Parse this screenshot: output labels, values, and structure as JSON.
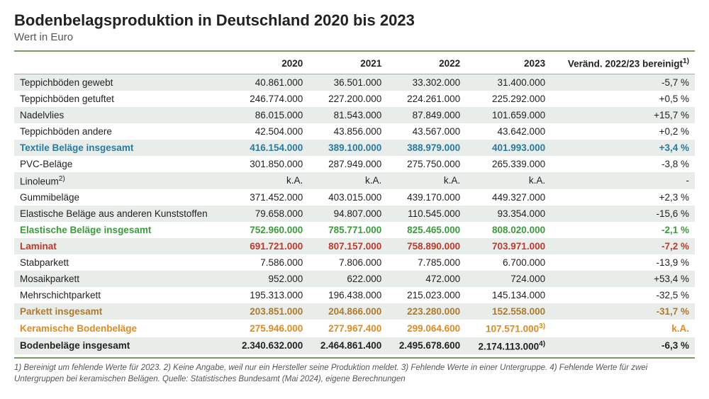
{
  "title": "Bodenbelagsproduktion in Deutschland 2020 bis 2023",
  "subtitle": "Wert in Euro",
  "columns": [
    "",
    "2020",
    "2021",
    "2022",
    "2023",
    "Veränd. 2022/23 bereinigt"
  ],
  "header_sup": "1)",
  "colors": {
    "blue": "#2a7a9e",
    "green": "#3d9a3d",
    "red": "#c0392b",
    "brown": "#b07a2a",
    "orange": "#e08b1e",
    "black": "#222222"
  },
  "rows": [
    {
      "label": "Teppichböden gewebt",
      "v": [
        "40.861.000",
        "36.501.000",
        "33.302.000",
        "31.400.000",
        "-5,7 %"
      ],
      "color": "black",
      "bold": false,
      "stripe": "odd"
    },
    {
      "label": "Teppichböden getuftet",
      "v": [
        "246.774.000",
        "227.200.000",
        "224.261.000",
        "225.292.000",
        "+0,5 %"
      ],
      "color": "black",
      "bold": false,
      "stripe": "even"
    },
    {
      "label": "Nadelvlies",
      "v": [
        "86.015.000",
        "81.543.000",
        "87.849.000",
        "101.659.000",
        "+15,7 %"
      ],
      "color": "black",
      "bold": false,
      "stripe": "odd"
    },
    {
      "label": "Teppichböden andere",
      "v": [
        "42.504.000",
        "43.856.000",
        "43.567.000",
        "43.642.000",
        "+0,2 %"
      ],
      "color": "black",
      "bold": false,
      "stripe": "even"
    },
    {
      "label": "Textile Beläge insgesamt",
      "v": [
        "416.154.000",
        "389.100.000",
        "388.979.000",
        "401.993.000",
        "+3,4 %"
      ],
      "color": "blue",
      "bold": true,
      "stripe": "odd"
    },
    {
      "label": "PVC-Beläge",
      "v": [
        "301.850.000",
        "287.949.000",
        "275.750.000",
        "265.339.000",
        "-3,8 %"
      ],
      "color": "black",
      "bold": false,
      "stripe": "even"
    },
    {
      "label": "Linoleum",
      "sup": "2)",
      "v": [
        "k.A.",
        "k.A.",
        "k.A.",
        "k.A.",
        "-"
      ],
      "color": "black",
      "bold": false,
      "stripe": "odd"
    },
    {
      "label": "Gummibeläge",
      "v": [
        "371.452.000",
        "403.015.000",
        "439.170.000",
        "449.327.000",
        "+2,3 %"
      ],
      "color": "black",
      "bold": false,
      "stripe": "even"
    },
    {
      "label": "Elastische Beläge aus anderen Kunststoffen",
      "v": [
        "79.658.000",
        "94.807.000",
        "110.545.000",
        "93.354.000",
        "-15,6 %"
      ],
      "color": "black",
      "bold": false,
      "stripe": "odd"
    },
    {
      "label": "Elastische Beläge insgesamt",
      "v": [
        "752.960.000",
        "785.771.000",
        "825.465.000",
        "808.020.000",
        "-2,1 %"
      ],
      "color": "green",
      "bold": true,
      "stripe": "even"
    },
    {
      "label": "Laminat",
      "v": [
        "691.721.000",
        "807.157.000",
        "758.890.000",
        "703.971.000",
        "-7,2 %"
      ],
      "color": "red",
      "bold": true,
      "stripe": "odd"
    },
    {
      "label": "Stabparkett",
      "v": [
        "7.586.000",
        "7.806.000",
        "7.785.000",
        "6.700.000",
        "-13,9 %"
      ],
      "color": "black",
      "bold": false,
      "stripe": "even"
    },
    {
      "label": "Mosaikparkett",
      "v": [
        "952.000",
        "622.000",
        "472.000",
        "724.000",
        "+53,4 %"
      ],
      "color": "black",
      "bold": false,
      "stripe": "odd"
    },
    {
      "label": "Mehrschichtparkett",
      "v": [
        "195.313.000",
        "196.438.000",
        "215.023.000",
        "145.134.000",
        "-32,5 %"
      ],
      "color": "black",
      "bold": false,
      "stripe": "even"
    },
    {
      "label": "Parkett insgesamt",
      "v": [
        "203.851.000",
        "204.866.000",
        "223.280.000",
        "152.558.000",
        "-31,7 %"
      ],
      "color": "brown",
      "bold": true,
      "stripe": "odd"
    },
    {
      "label": "Keramische Bodenbeläge",
      "v": [
        "275.946.000",
        "277.967.400",
        "299.064.600",
        "107.571.000",
        "k.A."
      ],
      "sup_col3": "3)",
      "color": "orange",
      "bold": true,
      "stripe": "even"
    },
    {
      "label": "Bodenbeläge insgesamt",
      "v": [
        "2.340.632.000",
        "2.464.861.400",
        "2.495.678.600",
        "2.174.113.000",
        "-6,3 %"
      ],
      "sup_col3": "4)",
      "color": "black",
      "bold": true,
      "stripe": "odd"
    }
  ],
  "footnotes": "1) Bereinigt um fehlende Werte für 2023. 2) Keine Angabe, weil nur ein Hersteller seine Produktion meldet. 3) Fehlende Werte in einer Untergruppe. 4) Fehlende Werte für zwei Untergruppen bei keramischen Belägen. Quelle: Statistisches Bundesamt (Mai 2024), eigene Berechnungen"
}
